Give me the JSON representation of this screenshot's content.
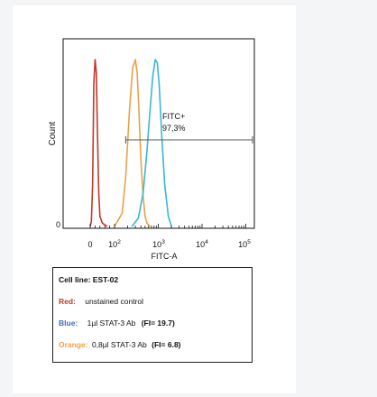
{
  "chart_data": {
    "type": "line",
    "title": "",
    "xlabel": "FITC-A",
    "ylabel": "Count",
    "x_scale": "log",
    "x_tick_labels": [
      {
        "text": "0",
        "value": 0
      },
      {
        "base": "10",
        "exp": "2",
        "value": 100
      },
      {
        "base": "10",
        "exp": "3",
        "value": 1000
      },
      {
        "base": "10",
        "exp": "4",
        "value": 10000
      },
      {
        "base": "10",
        "exp": "5",
        "value": 100000
      }
    ],
    "y_tick_labels": [
      {
        "text": "0",
        "value": 0
      }
    ],
    "series": [
      {
        "name": "unstained control",
        "color": "#c0392b",
        "x": [
          0,
          5,
          10,
          15,
          20,
          25,
          30,
          35,
          40,
          50,
          60,
          70
        ],
        "y": [
          0,
          3,
          25,
          85,
          100,
          92,
          55,
          20,
          6,
          2,
          1,
          0
        ]
      },
      {
        "name": "0,8µl STAT-3 Ab",
        "color": "#e8a24a",
        "x": [
          100,
          150,
          180,
          220,
          260,
          300,
          330,
          360,
          400,
          450,
          500,
          550,
          650
        ],
        "y": [
          0,
          8,
          30,
          70,
          95,
          100,
          92,
          70,
          40,
          18,
          6,
          2,
          0
        ]
      },
      {
        "name": "1µl STAT-3 Ab",
        "color": "#3bb6d6",
        "x": [
          250,
          350,
          450,
          550,
          650,
          750,
          850,
          950,
          1050,
          1200,
          1400,
          1700,
          2000
        ],
        "y": [
          0,
          5,
          20,
          45,
          70,
          90,
          100,
          98,
          85,
          55,
          25,
          6,
          0
        ]
      }
    ],
    "gate": {
      "label": "FITC+",
      "value": "97,3%",
      "x_start": 180,
      "x_end": 300000
    },
    "legend": {
      "cell_line": "Cell line: EST-02",
      "rows": [
        {
          "label": "Red:",
          "text": "unstained control",
          "fi": "",
          "color": "#c0392b"
        },
        {
          "label": "Blue:",
          "text": "1µl STAT-3 Ab",
          "fi": "(FI= 19.7)",
          "color": "#3a6fb0"
        },
        {
          "label": "Orange:",
          "text": "0,8µl STAT-3 Ab",
          "fi": "(FI= 6.8)",
          "color": "#e8a24a"
        }
      ]
    }
  }
}
